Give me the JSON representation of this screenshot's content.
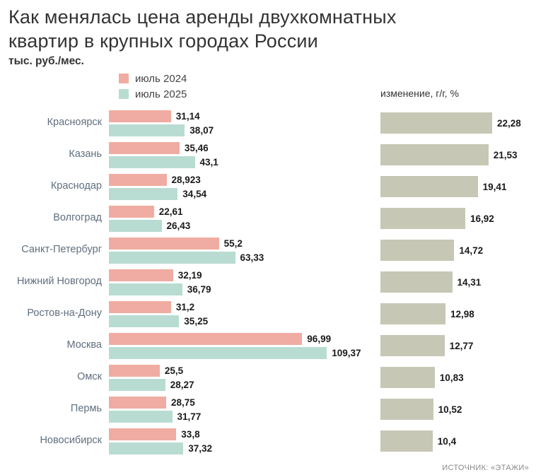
{
  "title": "Как менялась цена аренды двухкомнатных квартир в крупных городах России",
  "subtitle": "тыс. руб./мес.",
  "change_header": "изменение, г/г, %",
  "source": "ИСТОЧНИК: «ЭТАЖИ»",
  "colors": {
    "july2024": "#f0aca2",
    "july2025": "#b9dcd2",
    "change": "#c7c7b5"
  },
  "legend": [
    {
      "label": "июль 2024",
      "color": "#f0aca2"
    },
    {
      "label": "июль 2025",
      "color": "#b9dcd2"
    }
  ],
  "chart_data": {
    "type": "bar",
    "title": "Как менялась цена аренды двухкомнатных квартир в крупных городах России",
    "ylabel": "тыс. руб./мес.",
    "legend_position": "top",
    "grid": false,
    "categories": [
      "Красноярск",
      "Казань",
      "Краснодар",
      "Волгоград",
      "Санкт-Петербург",
      "Нижний Новгород",
      "Ростов-на-Дону",
      "Москва",
      "Омск",
      "Пермь",
      "Новосибирск"
    ],
    "xlim_price": [
      0,
      110
    ],
    "xlim_change": [
      0,
      22.28
    ],
    "series": [
      {
        "name": "июль 2024",
        "color": "#f0aca2",
        "values": [
          31.14,
          35.46,
          28.923,
          22.61,
          55.2,
          32.19,
          31.2,
          96.99,
          25.5,
          28.75,
          33.8
        ],
        "labels": [
          "31,14",
          "35,46",
          "28,923",
          "22,61",
          "55,2",
          "32,19",
          "31,2",
          "96,99",
          "25,5",
          "28,75",
          "33,8"
        ]
      },
      {
        "name": "июль 2025",
        "color": "#b9dcd2",
        "values": [
          38.07,
          43.1,
          34.54,
          26.43,
          63.33,
          36.79,
          35.25,
          109.37,
          28.27,
          31.77,
          37.32
        ],
        "labels": [
          "38,07",
          "43,1",
          "34,54",
          "26,43",
          "63,33",
          "36,79",
          "35,25",
          "109,37",
          "28,27",
          "31,77",
          "37,32"
        ]
      },
      {
        "name": "изменение, г/г, %",
        "color": "#c7c7b5",
        "values": [
          22.28,
          21.53,
          19.41,
          16.92,
          14.72,
          14.31,
          12.98,
          12.77,
          10.83,
          10.52,
          10.4
        ],
        "labels": [
          "22,28",
          "21,53",
          "19,41",
          "16,92",
          "14,72",
          "14,31",
          "12,98",
          "12,77",
          "10,83",
          "10,52",
          "10,4"
        ]
      }
    ]
  }
}
